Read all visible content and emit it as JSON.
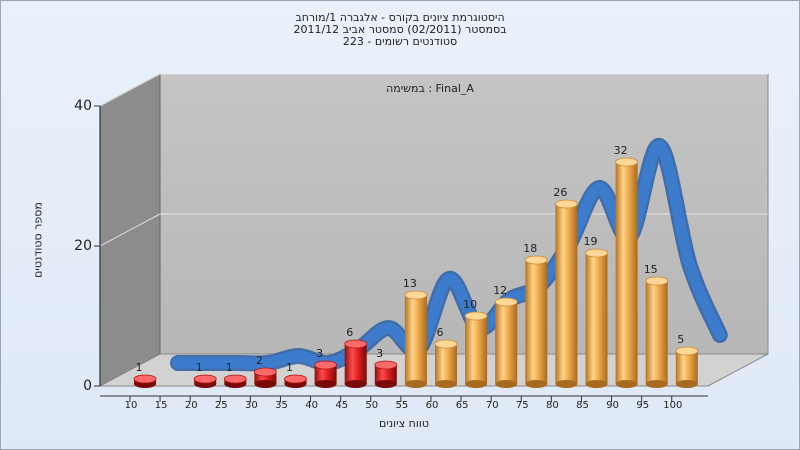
{
  "chart_data": {
    "type": "bar",
    "title_lines": [
      "היסטוגרמת ציונים בקורס - אלגברה 1/מורחב",
      "בסמסטר  (02/2011)  סמסטר אביב 2011/12",
      "סטודנטים רשומים - 223"
    ],
    "annotation": "במשימה : Final_A",
    "xlabel": "טווח ציונים",
    "ylabel": "מספר סטודנטים",
    "x_tick_labels": [
      "10",
      "15",
      "20",
      "25",
      "30",
      "35",
      "40",
      "45",
      "50",
      "55",
      "60",
      "65",
      "70",
      "75",
      "80",
      "85",
      "90",
      "95",
      "100"
    ],
    "y_tick_labels": [
      "0",
      "20",
      "40"
    ],
    "ylim": [
      0,
      40
    ],
    "bars": [
      {
        "x": 10,
        "value": 1
      },
      {
        "x": 20,
        "value": 1
      },
      {
        "x": 25,
        "value": 1
      },
      {
        "x": 30,
        "value": 2
      },
      {
        "x": 35,
        "value": 1
      },
      {
        "x": 40,
        "value": 3
      },
      {
        "x": 45,
        "value": 6
      },
      {
        "x": 50,
        "value": 3
      },
      {
        "x": 55,
        "value": 13
      },
      {
        "x": 60,
        "value": 6
      },
      {
        "x": 65,
        "value": 10
      },
      {
        "x": 70,
        "value": 12
      },
      {
        "x": 75,
        "value": 18
      },
      {
        "x": 80,
        "value": 26
      },
      {
        "x": 85,
        "value": 19
      },
      {
        "x": 90,
        "value": 32
      },
      {
        "x": 95,
        "value": 15
      },
      {
        "x": 100,
        "value": 5
      }
    ],
    "fail_below": 55,
    "colors": {
      "fail_bar": "#d61a1a",
      "pass_bar": "#e8a84a",
      "trend_line": "#3d7ccc",
      "plot_back": "#b7b7b7",
      "plot_side": "#8c8c8c",
      "floor": "#d2d2d2"
    },
    "grid": true
  }
}
